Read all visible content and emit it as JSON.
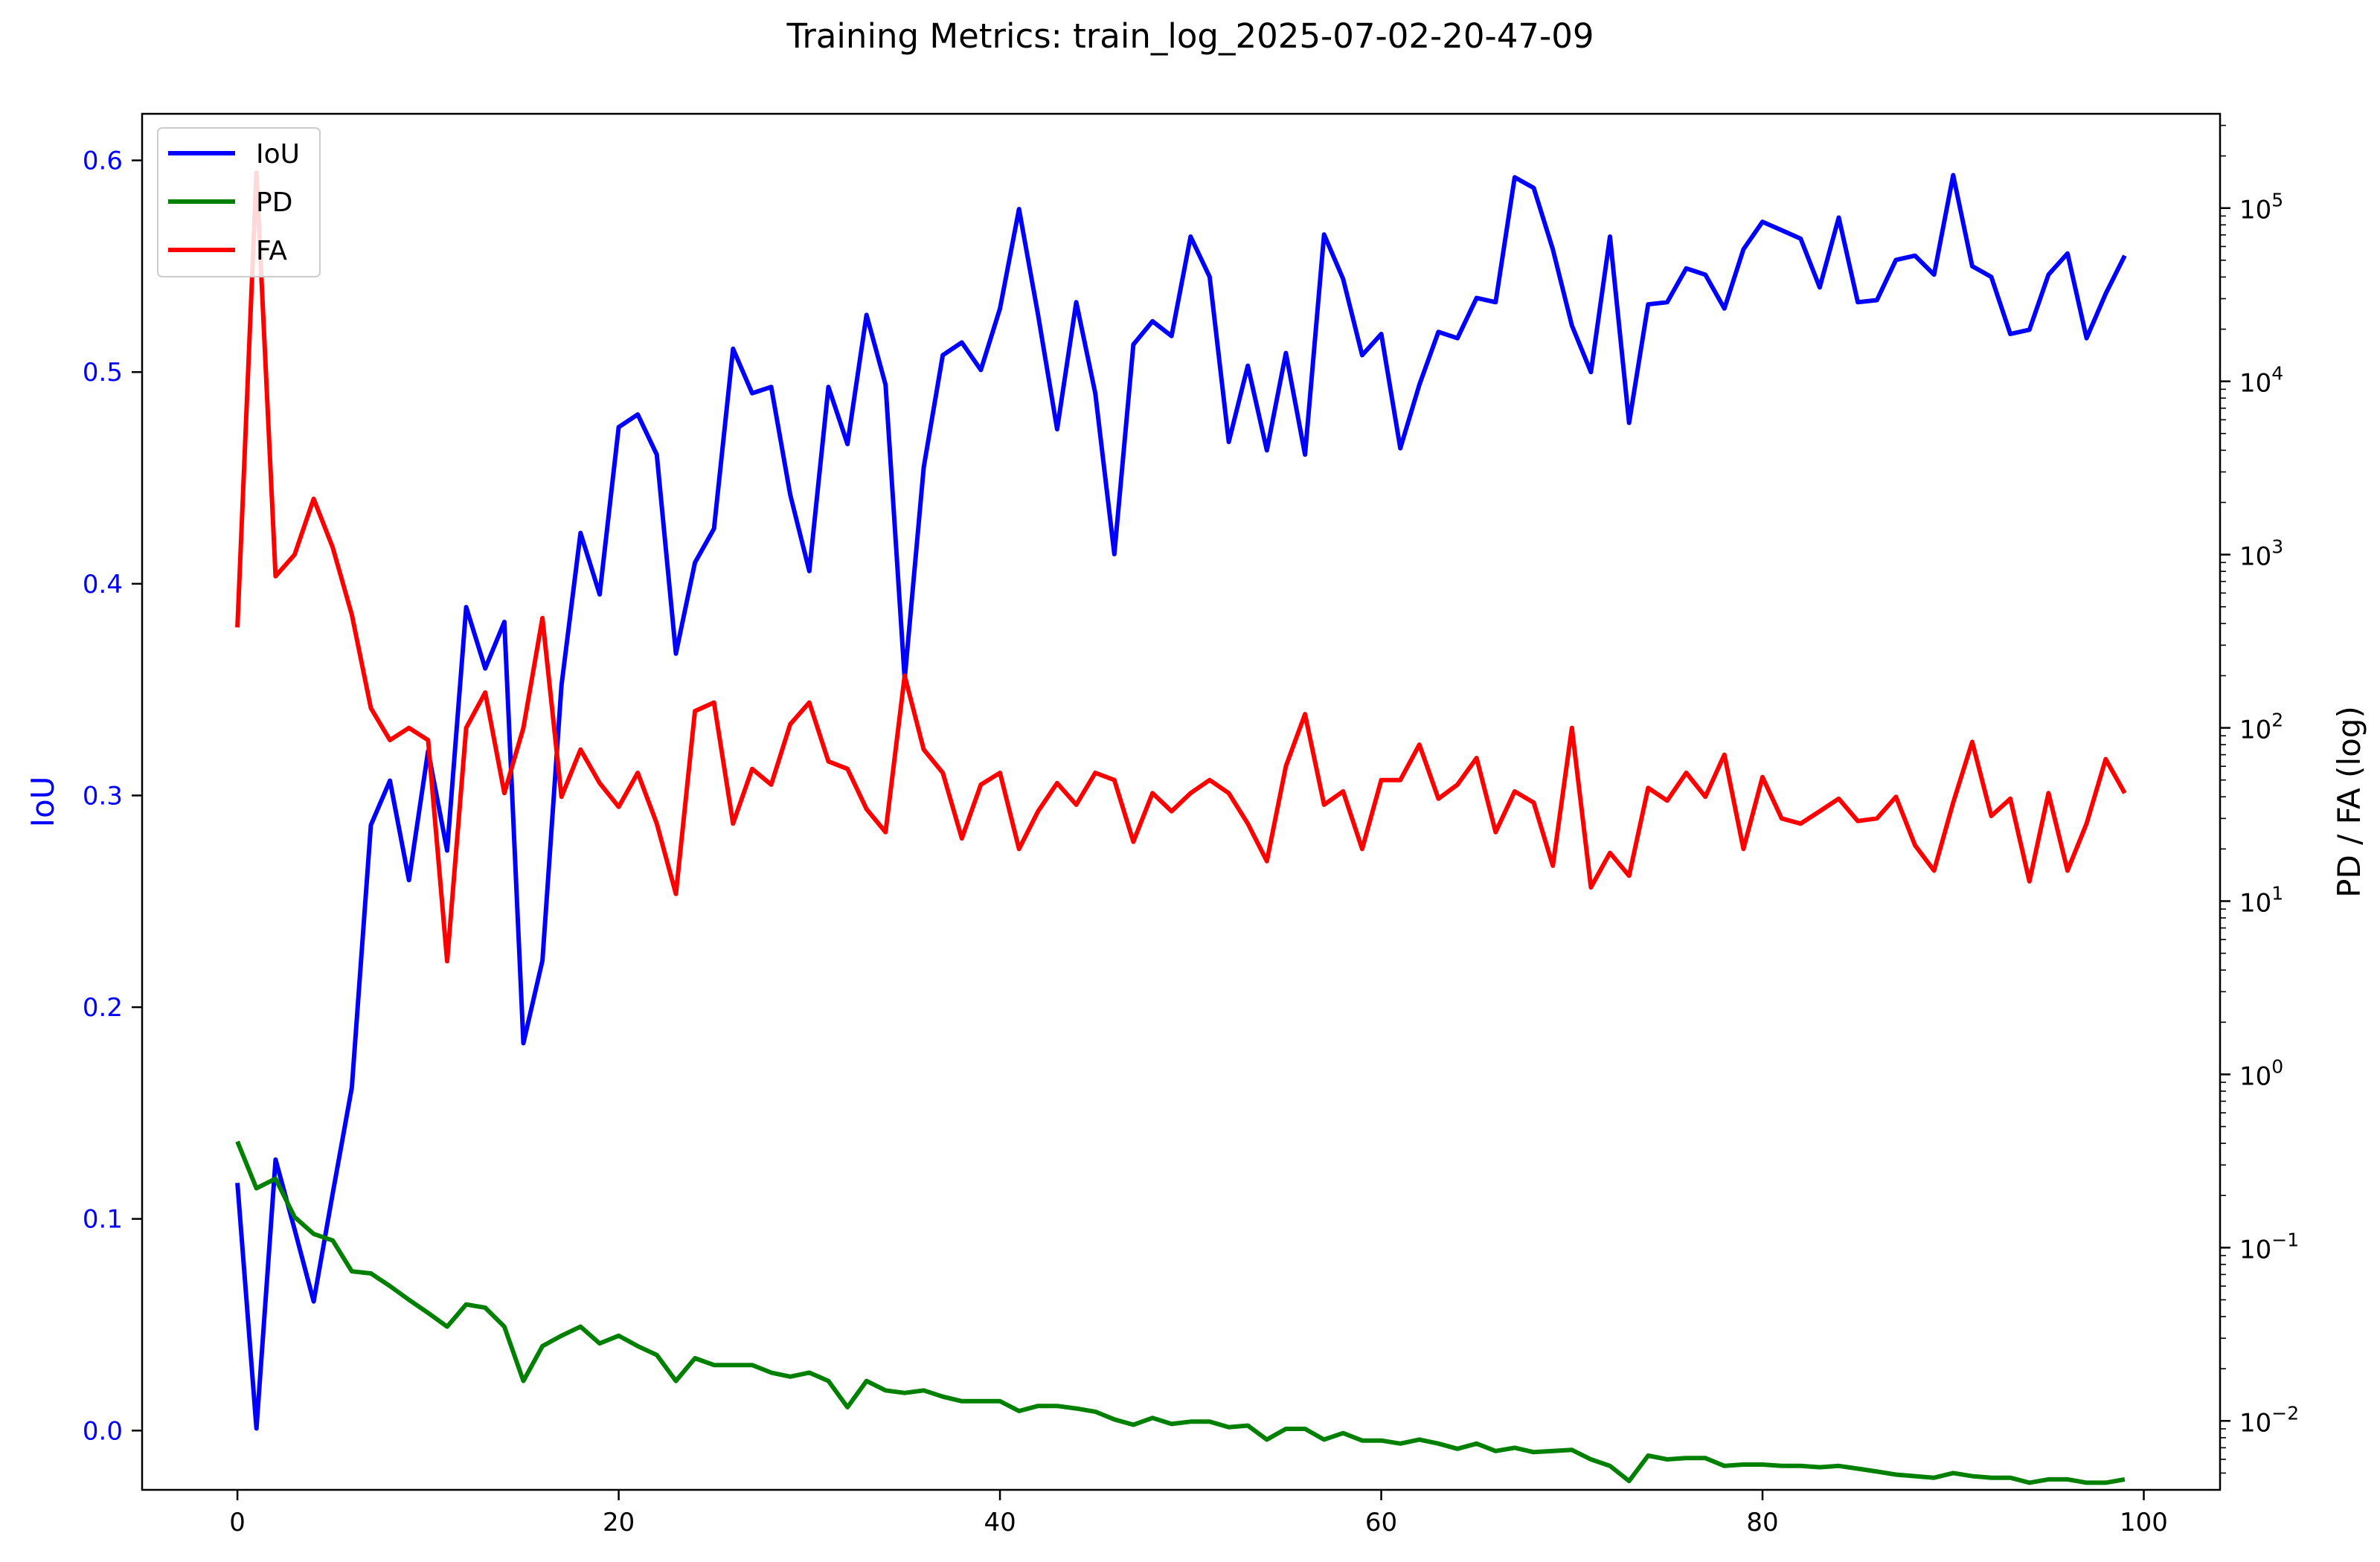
{
  "chart_data": {
    "type": "line",
    "title": "Training Metrics: train_log_2025-07-02-20-47-09",
    "xlabel": "",
    "ylabel_left": "IoU",
    "ylabel_right": "PD / FA (log)",
    "xlim": [
      -5,
      104
    ],
    "ylim_left": [
      -0.028,
      0.622
    ],
    "ylim_right_log": [
      0.004,
      350000
    ],
    "right_scale": "log",
    "x_ticks": [
      0,
      20,
      40,
      60,
      80,
      100
    ],
    "x_tick_labels": [
      "0",
      "20",
      "40",
      "60",
      "80",
      "100"
    ],
    "left_ticks": [
      0.0,
      0.1,
      0.2,
      0.3,
      0.4,
      0.5,
      0.6
    ],
    "left_tick_labels": [
      "0.0",
      "0.1",
      "0.2",
      "0.3",
      "0.4",
      "0.5",
      "0.6"
    ],
    "right_ticks": [
      0.01,
      0.1,
      1,
      10,
      100,
      1000,
      10000,
      100000
    ],
    "right_tick_bases": [
      "10",
      "10",
      "10",
      "10",
      "10",
      "10",
      "10",
      "10"
    ],
    "right_tick_exponents": [
      "−2",
      "−1",
      "0",
      "1",
      "2",
      "3",
      "4",
      "5"
    ],
    "grid": false,
    "legend_position": "top-left",
    "colors": {
      "IoU": "#0000ff",
      "PD": "#008000",
      "FA": "#ff0000",
      "axis": "#000000",
      "left_tick_color": "#0000ff"
    },
    "x": [
      0,
      1,
      2,
      3,
      4,
      5,
      6,
      7,
      8,
      9,
      10,
      11,
      12,
      13,
      14,
      15,
      16,
      17,
      18,
      19,
      20,
      21,
      22,
      23,
      24,
      25,
      26,
      27,
      28,
      29,
      30,
      31,
      32,
      33,
      34,
      35,
      36,
      37,
      38,
      39,
      40,
      41,
      42,
      43,
      44,
      45,
      46,
      47,
      48,
      49,
      50,
      51,
      52,
      53,
      54,
      55,
      56,
      57,
      58,
      59,
      60,
      61,
      62,
      63,
      64,
      65,
      66,
      67,
      68,
      69,
      70,
      71,
      72,
      73,
      74,
      75,
      76,
      77,
      78,
      79,
      80,
      81,
      82,
      83,
      84,
      85,
      86,
      87,
      88,
      89,
      90,
      91,
      92,
      93,
      94,
      95,
      96,
      97,
      98,
      99
    ],
    "series": [
      {
        "name": "IoU",
        "axis": "left",
        "values": [
          0.117,
          0.001,
          0.128,
          0.095,
          0.061,
          0.112,
          0.162,
          0.286,
          0.307,
          0.26,
          0.321,
          0.274,
          0.389,
          0.36,
          0.382,
          0.183,
          0.222,
          0.352,
          0.424,
          0.395,
          0.474,
          0.48,
          0.461,
          0.367,
          0.41,
          0.426,
          0.511,
          0.49,
          0.493,
          0.442,
          0.406,
          0.493,
          0.466,
          0.527,
          0.494,
          0.355,
          0.455,
          0.508,
          0.514,
          0.501,
          0.53,
          0.577,
          0.527,
          0.473,
          0.533,
          0.49,
          0.414,
          0.513,
          0.524,
          0.517,
          0.564,
          0.545,
          0.467,
          0.503,
          0.463,
          0.509,
          0.461,
          0.565,
          0.544,
          0.508,
          0.518,
          0.464,
          0.494,
          0.519,
          0.516,
          0.535,
          0.533,
          0.592,
          0.587,
          0.558,
          0.522,
          0.5,
          0.564,
          0.476,
          0.532,
          0.533,
          0.549,
          0.546,
          0.53,
          0.558,
          0.571,
          0.567,
          0.563,
          0.54,
          0.573,
          0.533,
          0.534,
          0.553,
          0.555,
          0.546,
          0.593,
          0.55,
          0.545,
          0.518,
          0.52,
          0.546,
          0.556,
          0.516,
          0.537,
          0.555
        ]
      },
      {
        "name": "PD",
        "axis": "right",
        "values": [
          0.41,
          0.22,
          0.25,
          0.15,
          0.12,
          0.11,
          0.073,
          0.071,
          0.06,
          0.05,
          0.042,
          0.035,
          0.047,
          0.045,
          0.035,
          0.017,
          0.027,
          0.031,
          0.035,
          0.028,
          0.031,
          0.027,
          0.024,
          0.017,
          0.023,
          0.021,
          0.021,
          0.021,
          0.019,
          0.018,
          0.019,
          0.017,
          0.012,
          0.017,
          0.015,
          0.0145,
          0.015,
          0.0138,
          0.013,
          0.013,
          0.013,
          0.0114,
          0.0122,
          0.0122,
          0.0118,
          0.0113,
          0.0102,
          0.0095,
          0.0104,
          0.0096,
          0.0099,
          0.0099,
          0.0092,
          0.0094,
          0.0078,
          0.009,
          0.009,
          0.0078,
          0.0085,
          0.0077,
          0.0077,
          0.0074,
          0.0078,
          0.0074,
          0.0069,
          0.0074,
          0.0067,
          0.007,
          0.0066,
          0.0067,
          0.0068,
          0.006,
          0.0055,
          0.0045,
          0.0063,
          0.006,
          0.0061,
          0.0061,
          0.0055,
          0.0056,
          0.0056,
          0.0055,
          0.0055,
          0.0054,
          0.0055,
          0.0053,
          0.0051,
          0.0049,
          0.0048,
          0.0047,
          0.005,
          0.0048,
          0.0047,
          0.0047,
          0.0044,
          0.0046,
          0.0046,
          0.0044,
          0.0044,
          0.0046
        ]
      },
      {
        "name": "FA",
        "axis": "right",
        "values": [
          380,
          160000,
          750,
          1000,
          2100,
          1100,
          450,
          130,
          85,
          100,
          85,
          4.5,
          100,
          160,
          42,
          100,
          430,
          40,
          75,
          48,
          35,
          55,
          28,
          11,
          125,
          140,
          28,
          58,
          47,
          105,
          140,
          64,
          58,
          34,
          25,
          200,
          75,
          55,
          23,
          47,
          55,
          20,
          33,
          48,
          36,
          55,
          50,
          22,
          42,
          33,
          42,
          50,
          42,
          28,
          17,
          60,
          120,
          36,
          43,
          20,
          50,
          50,
          80,
          39,
          47,
          67,
          25,
          43,
          37,
          16,
          100,
          12,
          19,
          14,
          45,
          38,
          55,
          40,
          70,
          20,
          52,
          30,
          28,
          33,
          39,
          29,
          30,
          40,
          21,
          15,
          37,
          83,
          31,
          39,
          13,
          42,
          15,
          28,
          66,
          42
        ]
      }
    ]
  }
}
